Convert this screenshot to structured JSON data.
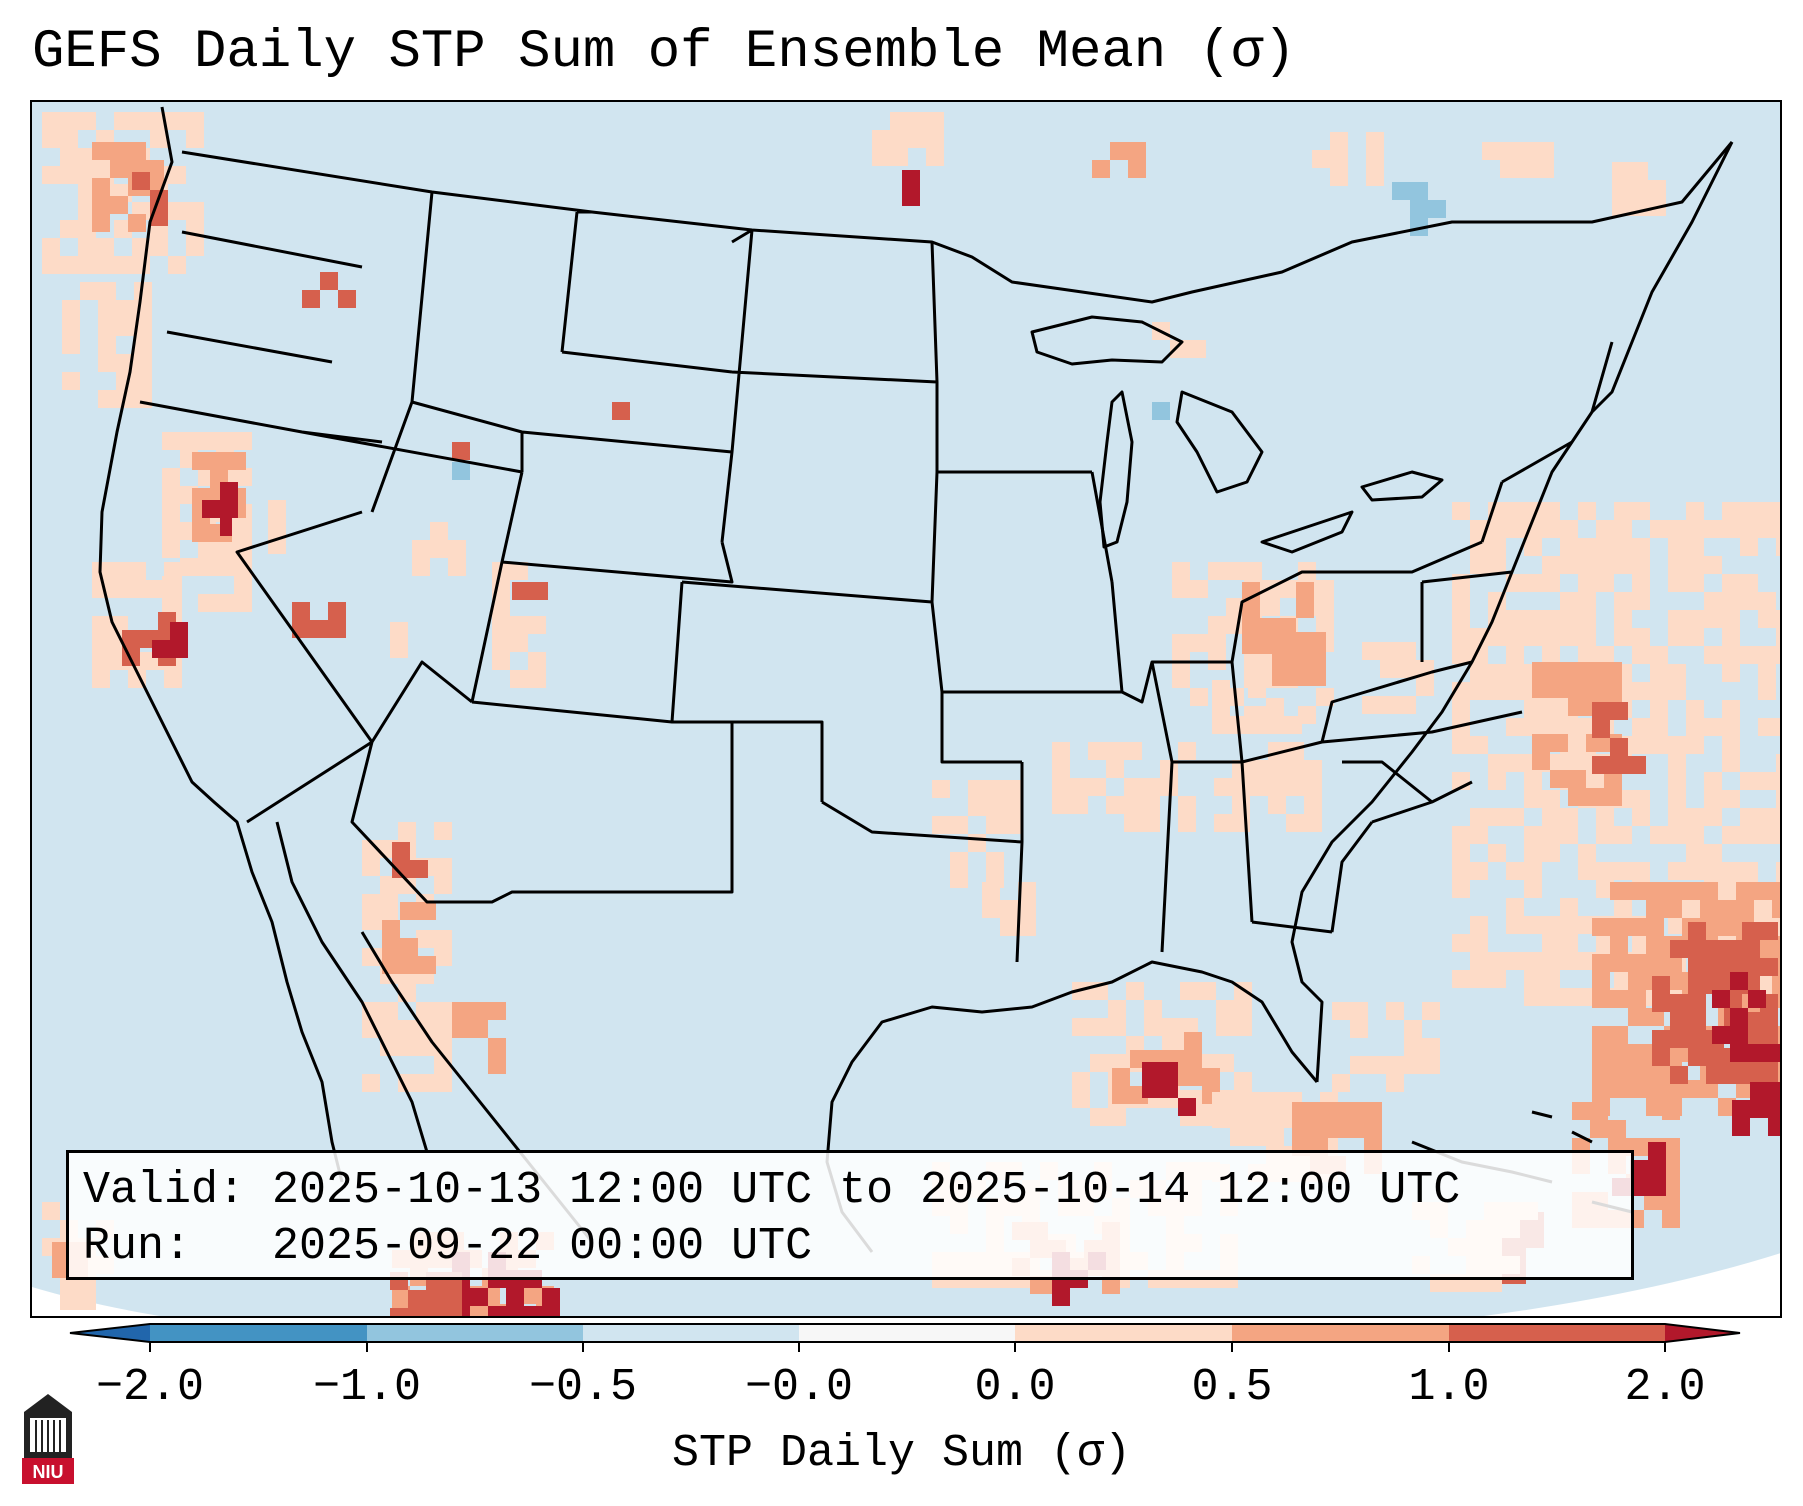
{
  "title": "GEFS Daily STP Sum of Ensemble Mean (σ)",
  "info_box": {
    "valid_label": "Valid:",
    "valid_value": "2025-10-13 12:00 UTC to 2025-10-14 12:00 UTC",
    "run_label": "Run:",
    "run_value": "2025-09-22 00:00 UTC"
  },
  "colorbar": {
    "label": "STP Daily Sum (σ)",
    "ticks": [
      "−2.0",
      "−1.0",
      "−0.5",
      "−0.0",
      "0.0",
      "0.5",
      "1.0",
      "2.0"
    ],
    "bins": [
      {
        "range": "< -2.0",
        "color": "#2166ac"
      },
      {
        "range": "-2.0 to -1.0",
        "color": "#4393c3"
      },
      {
        "range": "-1.0 to -0.5",
        "color": "#92c5de"
      },
      {
        "range": "-0.5 to -0.0",
        "color": "#d1e5f0"
      },
      {
        "range": "-0.0 to 0.0",
        "color": "#f7f7f7"
      },
      {
        "range": "0.0 to 0.5",
        "color": "#fddbc7"
      },
      {
        "range": "0.5 to 1.0",
        "color": "#f4a582"
      },
      {
        "range": "1.0 to 2.0",
        "color": "#d6604d"
      },
      {
        "range": "> 2.0",
        "color": "#b2182b"
      }
    ]
  },
  "logo": {
    "text": "NIU",
    "color": "#c8102e"
  },
  "field": {
    "background_color": "#d1e5f0",
    "outside_color": "#ffffff",
    "levels": [
      "-0.5",
      "0.5",
      "1.0",
      "2.0"
    ]
  }
}
